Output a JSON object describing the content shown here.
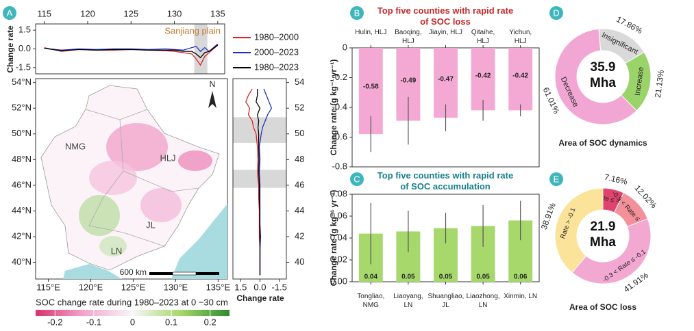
{
  "chart_data": [
    {
      "type": "line",
      "panel": "A",
      "ylabel": "Change rate",
      "annotation": "Sanjiang plain",
      "highlight": [
        132.3,
        133.8
      ],
      "x": [
        115,
        117,
        119,
        121,
        123,
        125,
        127,
        129,
        130,
        131,
        132,
        132.5,
        133,
        133.5,
        134,
        135
      ],
      "series": [
        {
          "name": "1980–2000",
          "color": "#e02020",
          "values": [
            0.1,
            -0.2,
            -0.05,
            -0.1,
            -0.1,
            -0.05,
            -0.1,
            -0.15,
            -0.2,
            -0.3,
            -0.4,
            -0.8,
            -1.3,
            -0.6,
            -0.3,
            0.3
          ]
        },
        {
          "name": "2000–2023",
          "color": "#2030c0",
          "values": [
            0.05,
            -0.1,
            0,
            -0.05,
            0,
            0,
            -0.05,
            0,
            -0.05,
            -0.1,
            0.1,
            0.2,
            -0.2,
            0.1,
            -0.2,
            0.4
          ]
        },
        {
          "name": "1980–2023",
          "color": "#000000",
          "values": [
            0.05,
            -0.15,
            -0.05,
            -0.1,
            -0.05,
            -0.05,
            -0.1,
            -0.1,
            -0.1,
            -0.2,
            -0.2,
            -0.4,
            -0.7,
            -0.3,
            -0.2,
            0.3
          ]
        }
      ],
      "xlim": [
        114,
        135.8
      ],
      "xticks": [
        115,
        120,
        125,
        130,
        135
      ],
      "ylim": [
        -2,
        2
      ],
      "yticks": [
        1.5,
        {
          "value": 0,
          "label": "0.0"
        },
        -1.5
      ]
    },
    {
      "type": "map",
      "labels": [
        "NMG",
        "HLJ",
        "JL",
        "LN"
      ],
      "north": "N",
      "scale_label": "600 km",
      "xlim": [
        113.5,
        136.1
      ],
      "xticks": [
        {
          "value": 115,
          "label": "115°E"
        },
        {
          "value": 120,
          "label": "120°E"
        },
        {
          "value": 125,
          "label": "125°E"
        },
        {
          "value": 130,
          "label": "130°E"
        },
        {
          "value": 135,
          "label": "135°E"
        }
      ],
      "ylim": [
        38.7,
        54.3
      ],
      "yticks": [
        {
          "value": 54,
          "label": "54°N"
        },
        {
          "value": 52,
          "label": "52°N"
        },
        {
          "value": 50,
          "label": "50°N"
        },
        {
          "value": 48,
          "label": "48°N"
        },
        {
          "value": 46,
          "label": "46°N"
        },
        {
          "value": 44,
          "label": "44°N"
        },
        {
          "value": 42,
          "label": "42°N"
        },
        {
          "value": 40,
          "label": "40°N"
        }
      ],
      "colorbar": {
        "title": "SOC change rate during 1980–2023 at 0 −30 cm",
        "lim": [
          -0.25,
          0.25
        ],
        "ticks": [
          -0.2,
          -0.1,
          0,
          0.1,
          0.2
        ],
        "colors": [
          "#d6336c",
          "#f3a6cf",
          "#f7f7f7",
          "#a6d86b",
          "#2e8b2e"
        ]
      }
    },
    {
      "type": "profile",
      "xlabel": "Change rate",
      "y": [
        39,
        40,
        41,
        42,
        43,
        44,
        45,
        46,
        47,
        48,
        49,
        50,
        50.5,
        51,
        51.5,
        52,
        52.5,
        53,
        53.5
      ],
      "series": [
        {
          "color": "#e02020",
          "values": [
            0,
            0,
            0,
            0.05,
            0.05,
            0.05,
            0.1,
            0.1,
            0.2,
            0.15,
            0.2,
            0.3,
            0.5,
            0.6,
            0.9,
            0.8,
            1.1,
            0.9,
            0.6
          ]
        },
        {
          "color": "#2030c0",
          "values": [
            0,
            0,
            0,
            -0.05,
            0,
            0,
            0,
            0,
            0.05,
            0,
            0.05,
            -0.1,
            -0.2,
            -0.4,
            -0.6,
            -0.9,
            -0.7,
            -0.5,
            -0.3
          ]
        },
        {
          "color": "#000000",
          "values": [
            0,
            0,
            0,
            0,
            0.02,
            0.02,
            0.05,
            0.05,
            0.1,
            0.08,
            0.1,
            0.1,
            0.15,
            0.1,
            0.2,
            0,
            0.3,
            0.2,
            0.2
          ]
        }
      ],
      "xlim": [
        2.1,
        -2.05
      ],
      "xticks": [
        1.5,
        {
          "value": 0,
          "label": "0.0"
        },
        -1.5
      ],
      "ylim": [
        38.7,
        54.3
      ],
      "yticks": [
        54,
        52,
        50,
        48,
        46,
        44,
        42,
        40
      ],
      "highlight": [
        [
          49.3,
          51.3
        ],
        [
          45.8,
          47.2
        ]
      ]
    },
    {
      "type": "bar",
      "panel": "B",
      "title": "Top five counties with rapid rate of SOC loss",
      "ylabel": "Change rate (g kg⁻¹ yr⁻¹)",
      "categories": [
        "Hulin, HLJ",
        "Baoqing, HLJ",
        "Jiayin, HLJ",
        "Qitaihe, HLJ",
        "Yichun, HLJ"
      ],
      "values": [
        -0.58,
        -0.49,
        -0.47,
        -0.42,
        -0.42
      ],
      "errors": [
        0.12,
        0.16,
        0.09,
        0.07,
        0.04
      ],
      "color": "#f4a9d4",
      "ylim": [
        -0.8,
        0
      ],
      "yticks": [
        0,
        -0.2,
        -0.4,
        -0.6,
        -0.8
      ]
    },
    {
      "type": "bar",
      "panel": "C",
      "title": "Top five counties with rapid rate of SOC accumulation",
      "ylabel": "Change rate (g kg⁻¹ yr⁻¹)",
      "categories": [
        "Tongliao, NMG",
        "Liaoyang, LN",
        "Shuangliao, JL",
        "Liaozhong, LN",
        "Xinmin, LN"
      ],
      "values": [
        0.044,
        0.046,
        0.049,
        0.051,
        0.056
      ],
      "value_labels": [
        "0.04",
        "0.05",
        "0.05",
        "0.05",
        "0.06"
      ],
      "errors": [
        0.028,
        0.019,
        0.014,
        0.019,
        0.018
      ],
      "color": "#a6d86b",
      "ylim": [
        0,
        0.08
      ],
      "yticks": [
        {
          "value": 0,
          "label": "0.00"
        },
        {
          "value": 0.02,
          "label": "0.02"
        },
        {
          "value": 0.04,
          "label": "0.04"
        },
        {
          "value": 0.06,
          "label": "0.06"
        },
        {
          "value": 0.08,
          "label": "0.08"
        }
      ]
    },
    {
      "type": "donut",
      "panel": "D",
      "center_label": "35.9 Mha",
      "caption": "Area of SOC dynamics",
      "categories": [
        "Insignificant",
        "Increase",
        "Decrease"
      ],
      "values": [
        17.86,
        21.13,
        61.01
      ],
      "value_labels": [
        "17.86%",
        "21.13%",
        "61.01%"
      ],
      "colors": [
        "#d9d9d9",
        "#9bd36b",
        "#f2a6d3"
      ]
    },
    {
      "type": "donut",
      "panel": "E",
      "center_label": "21.9 Mha",
      "caption": "Area of SOC loss",
      "categories": [
        "Rate ≤ -0.5",
        "-0.5 < Rate ≤ -0.3",
        "-0.3 < Rate ≤ -0.1",
        "Rate > -0.1"
      ],
      "values": [
        7.16,
        12.02,
        41.91,
        38.91
      ],
      "value_labels": [
        "7.16%",
        "12.02%",
        "41.91%",
        "38.91%"
      ],
      "colors": [
        "#e0446e",
        "#f4909a",
        "#f3a8d2",
        "#fbe39a"
      ]
    }
  ]
}
